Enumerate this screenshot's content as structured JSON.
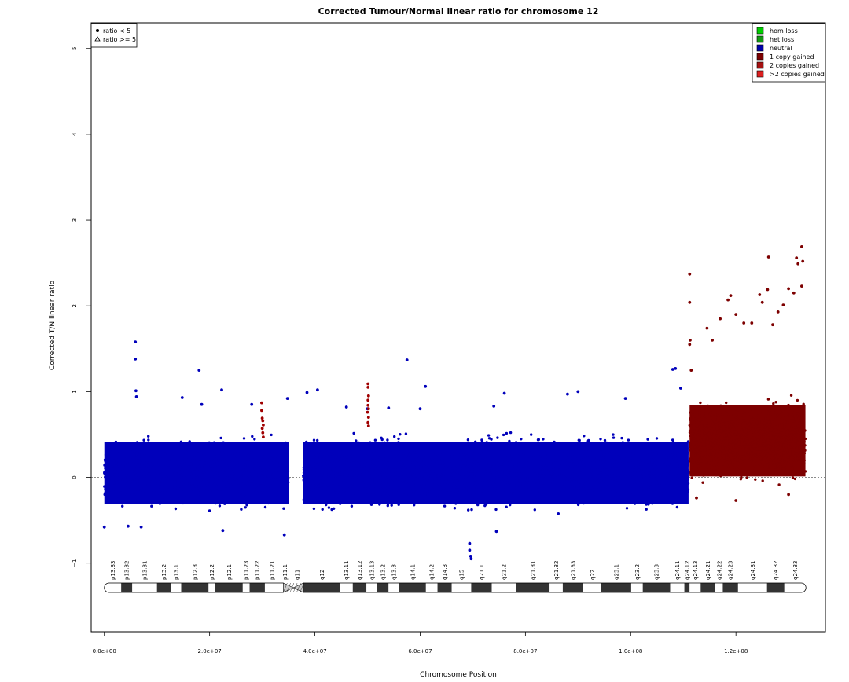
{
  "chart_data": {
    "type": "scatter",
    "title": "Corrected Tumour/Normal linear ratio for chromosome  12",
    "xlabel": "Chromosome Position",
    "ylabel": "Corrected T/N linear ratio",
    "xlim": [
      -2500000,
      137000000
    ],
    "ylim": [
      -1.8,
      5.3
    ],
    "x_ticks": [
      0,
      20000000,
      40000000,
      60000000,
      80000000,
      100000000,
      120000000
    ],
    "x_tick_labels": [
      "0.0e+00",
      "2.0e+07",
      "4.0e+07",
      "6.0e+07",
      "8.0e+07",
      "1.0e+08",
      "1.2e+08"
    ],
    "y_ticks": [
      -1,
      0,
      1,
      2,
      3,
      4,
      5
    ],
    "y_tick_labels": [
      "−1",
      "0",
      "1",
      "2",
      "3",
      "4",
      "5"
    ],
    "reference_line_y": 0,
    "shape_legend": {
      "position": "top-left",
      "entries": [
        {
          "label": "ratio < 5",
          "symbol": "dot"
        },
        {
          "label": "ratio >= 5",
          "symbol": "triangle"
        }
      ]
    },
    "legend": {
      "position": "top-right",
      "entries": [
        {
          "label": "hom loss",
          "color": "#00cc00"
        },
        {
          "label": "het loss",
          "color": "#119911"
        },
        {
          "label": "neutral",
          "color": "#0000aa"
        },
        {
          "label": "1 copy gained",
          "color": "#7a0000"
        },
        {
          "label": "2 copies gained",
          "color": "#a51010"
        },
        {
          "label": ">2 copies gained",
          "color": "#dd2020"
        }
      ]
    },
    "series": [
      {
        "name": "neutral",
        "color": "#0000bb",
        "density_regions": [
          {
            "x": [
              0,
              35000000
            ],
            "y": [
              -0.45,
              0.55
            ]
          },
          {
            "x": [
              37800000,
              111000000
            ],
            "y": [
              -0.45,
              0.55
            ]
          }
        ],
        "outliers": [
          [
            5900000,
            1.58
          ],
          [
            5900000,
            1.38
          ],
          [
            6000000,
            1.01
          ],
          [
            6100000,
            0.94
          ],
          [
            14800000,
            0.93
          ],
          [
            18000000,
            1.25
          ],
          [
            18500000,
            0.85
          ],
          [
            22300000,
            1.02
          ],
          [
            28000000,
            0.85
          ],
          [
            34800000,
            0.92
          ],
          [
            38500000,
            0.99
          ],
          [
            40500000,
            1.02
          ],
          [
            46000000,
            0.82
          ],
          [
            50000000,
            0.8
          ],
          [
            54000000,
            0.81
          ],
          [
            57500000,
            1.37
          ],
          [
            61000000,
            1.06
          ],
          [
            60000000,
            0.8
          ],
          [
            69400000,
            -0.77
          ],
          [
            69400000,
            -0.85
          ],
          [
            69600000,
            -0.92
          ],
          [
            69700000,
            -0.95
          ],
          [
            74000000,
            0.83
          ],
          [
            76000000,
            0.98
          ],
          [
            88000000,
            0.97
          ],
          [
            90000000,
            1.0
          ],
          [
            99000000,
            0.92
          ],
          [
            108000000,
            1.26
          ],
          [
            108500000,
            1.27
          ],
          [
            109500000,
            1.04
          ],
          [
            34200000,
            -0.67
          ],
          [
            4500000,
            -0.57
          ],
          [
            7000000,
            -0.58
          ],
          [
            22500000,
            -0.62
          ],
          [
            74500000,
            -0.63
          ],
          [
            0,
            -0.58
          ]
        ]
      },
      {
        "name": "1 copy gained",
        "color": "#7d0000",
        "density_regions": [
          {
            "x": [
              111200000,
              133200000
            ],
            "y": [
              -0.15,
              1.0
            ]
          }
        ],
        "outliers": [
          [
            111200000,
            2.37
          ],
          [
            111200000,
            2.04
          ],
          [
            111300000,
            1.6
          ],
          [
            111200000,
            1.55
          ],
          [
            111500000,
            1.25
          ],
          [
            114500000,
            1.74
          ],
          [
            117000000,
            1.85
          ],
          [
            118500000,
            2.07
          ],
          [
            119000000,
            2.12
          ],
          [
            120000000,
            1.9
          ],
          [
            123000000,
            1.8
          ],
          [
            124500000,
            2.13
          ],
          [
            125000000,
            2.04
          ],
          [
            126000000,
            2.19
          ],
          [
            126200000,
            2.57
          ],
          [
            128000000,
            1.93
          ],
          [
            129000000,
            2.01
          ],
          [
            130000000,
            2.2
          ],
          [
            131500000,
            2.56
          ],
          [
            131800000,
            2.49
          ],
          [
            132500000,
            2.69
          ],
          [
            132700000,
            2.52
          ],
          [
            132500000,
            2.23
          ],
          [
            131000000,
            2.15
          ],
          [
            127000000,
            1.78
          ],
          [
            121500000,
            1.8
          ],
          [
            115500000,
            1.6
          ],
          [
            112500000,
            -0.24
          ],
          [
            120000000,
            -0.27
          ],
          [
            130000000,
            -0.2
          ]
        ]
      },
      {
        "name": "2 copies gained",
        "color": "#a00000",
        "points": [
          [
            29900000,
            0.87
          ],
          [
            29900000,
            0.78
          ],
          [
            30000000,
            0.69
          ],
          [
            30100000,
            0.66
          ],
          [
            30200000,
            0.61
          ],
          [
            30000000,
            0.57
          ],
          [
            30100000,
            0.52
          ],
          [
            30200000,
            0.47
          ],
          [
            50100000,
            1.09
          ],
          [
            50100000,
            1.05
          ],
          [
            50200000,
            0.95
          ],
          [
            50100000,
            0.9
          ],
          [
            50100000,
            0.84
          ],
          [
            50200000,
            0.8
          ],
          [
            50000000,
            0.76
          ],
          [
            50200000,
            0.7
          ],
          [
            50100000,
            0.64
          ],
          [
            50200000,
            0.6
          ]
        ]
      }
    ],
    "centromere": {
      "x": [
        34000000,
        37800000
      ]
    },
    "cytobands": [
      {
        "name": "p13.33",
        "start": 0,
        "end": 3200000,
        "stain": "white"
      },
      {
        "name": "p13.32",
        "start": 3200000,
        "end": 5300000,
        "stain": "dark"
      },
      {
        "name": "p13.31",
        "start": 5300000,
        "end": 10000000,
        "stain": "white"
      },
      {
        "name": "p13.2",
        "start": 10000000,
        "end": 12600000,
        "stain": "dark"
      },
      {
        "name": "p13.1",
        "start": 12600000,
        "end": 14600000,
        "stain": "white"
      },
      {
        "name": "p12.3",
        "start": 14600000,
        "end": 19800000,
        "stain": "dark"
      },
      {
        "name": "p12.2",
        "start": 19800000,
        "end": 21100000,
        "stain": "white"
      },
      {
        "name": "p12.1",
        "start": 21100000,
        "end": 26300000,
        "stain": "dark"
      },
      {
        "name": "p11.23",
        "start": 26300000,
        "end": 27600000,
        "stain": "white"
      },
      {
        "name": "p11.22",
        "start": 27600000,
        "end": 30500000,
        "stain": "dark"
      },
      {
        "name": "p11.21",
        "start": 30500000,
        "end": 33200000,
        "stain": "white"
      },
      {
        "name": "p11.1",
        "start": 33200000,
        "end": 35500000,
        "stain": "acen"
      },
      {
        "name": "q11",
        "start": 35500000,
        "end": 37800000,
        "stain": "acen"
      },
      {
        "name": "q12",
        "start": 37800000,
        "end": 44800000,
        "stain": "dark"
      },
      {
        "name": "q13.11",
        "start": 44800000,
        "end": 47200000,
        "stain": "white"
      },
      {
        "name": "q13.12",
        "start": 47200000,
        "end": 49800000,
        "stain": "dark"
      },
      {
        "name": "q13.13",
        "start": 49800000,
        "end": 51800000,
        "stain": "white"
      },
      {
        "name": "q13.2",
        "start": 51800000,
        "end": 54000000,
        "stain": "dark"
      },
      {
        "name": "q13.3",
        "start": 54000000,
        "end": 56000000,
        "stain": "white"
      },
      {
        "name": "q14.1",
        "start": 56000000,
        "end": 61100000,
        "stain": "dark"
      },
      {
        "name": "q14.2",
        "start": 61100000,
        "end": 63300000,
        "stain": "white"
      },
      {
        "name": "q14.3",
        "start": 63300000,
        "end": 66000000,
        "stain": "dark"
      },
      {
        "name": "q15",
        "start": 66000000,
        "end": 69700000,
        "stain": "white"
      },
      {
        "name": "q21.1",
        "start": 69700000,
        "end": 73600000,
        "stain": "dark"
      },
      {
        "name": "q21.2",
        "start": 73600000,
        "end": 78300000,
        "stain": "white"
      },
      {
        "name": "q21.31",
        "start": 78300000,
        "end": 84600000,
        "stain": "dark"
      },
      {
        "name": "q21.32",
        "start": 84600000,
        "end": 87100000,
        "stain": "white"
      },
      {
        "name": "q21.33",
        "start": 87100000,
        "end": 91000000,
        "stain": "dark"
      },
      {
        "name": "q22",
        "start": 91000000,
        "end": 94400000,
        "stain": "white"
      },
      {
        "name": "q23.1",
        "start": 94400000,
        "end": 100100000,
        "stain": "dark"
      },
      {
        "name": "q23.2",
        "start": 100100000,
        "end": 102300000,
        "stain": "white"
      },
      {
        "name": "q23.3",
        "start": 102300000,
        "end": 107500000,
        "stain": "dark"
      },
      {
        "name": "q24.11",
        "start": 107500000,
        "end": 110200000,
        "stain": "white"
      },
      {
        "name": "q24.12",
        "start": 110200000,
        "end": 111200000,
        "stain": "dark"
      },
      {
        "name": "q24.13",
        "start": 111200000,
        "end": 113300000,
        "stain": "white"
      },
      {
        "name": "q24.21",
        "start": 113300000,
        "end": 116100000,
        "stain": "dark"
      },
      {
        "name": "q24.22",
        "start": 116100000,
        "end": 117500000,
        "stain": "white"
      },
      {
        "name": "q24.23",
        "start": 117500000,
        "end": 120400000,
        "stain": "dark"
      },
      {
        "name": "q24.31",
        "start": 120400000,
        "end": 125900000,
        "stain": "white"
      },
      {
        "name": "q24.32",
        "start": 125900000,
        "end": 129200000,
        "stain": "dark"
      },
      {
        "name": "q24.33",
        "start": 129200000,
        "end": 133300000,
        "stain": "white"
      }
    ]
  }
}
